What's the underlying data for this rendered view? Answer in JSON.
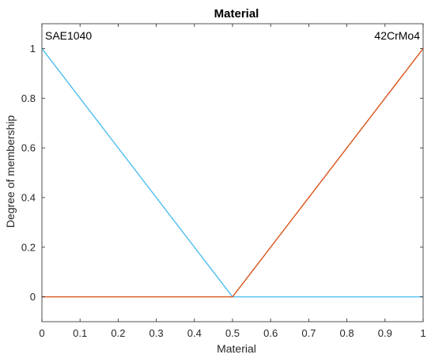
{
  "chart_data": {
    "type": "line",
    "title": "Material",
    "xlabel": "Material",
    "ylabel": "Degree of membership",
    "xlim": [
      0,
      1
    ],
    "ylim": [
      -0.1,
      1.1
    ],
    "xticks": [
      0,
      0.1,
      0.2,
      0.3,
      0.4,
      0.5,
      0.6,
      0.7,
      0.8,
      0.9,
      1
    ],
    "xtick_labels": [
      "0",
      "0.1",
      "0.2",
      "0.3",
      "0.4",
      "0.5",
      "0.6",
      "0.7",
      "0.8",
      "0.9",
      "1"
    ],
    "yticks": [
      0,
      0.2,
      0.4,
      0.6,
      0.8,
      1
    ],
    "ytick_labels": [
      "0",
      "0.2",
      "0.4",
      "0.6",
      "0.8",
      "1"
    ],
    "grid": false,
    "series": [
      {
        "name": "SAE1040",
        "color": "#4DBEEE",
        "x": [
          0,
          0.5,
          1
        ],
        "y": [
          1,
          0,
          0
        ]
      },
      {
        "name": "42CrMo4",
        "color": "#D95319",
        "x": [
          0,
          0.5,
          1
        ],
        "y": [
          0,
          0,
          1
        ]
      }
    ],
    "annotations": [
      {
        "text": "SAE1040",
        "anchor": "top-left"
      },
      {
        "text": "42CrMo4",
        "anchor": "top-right"
      }
    ]
  }
}
